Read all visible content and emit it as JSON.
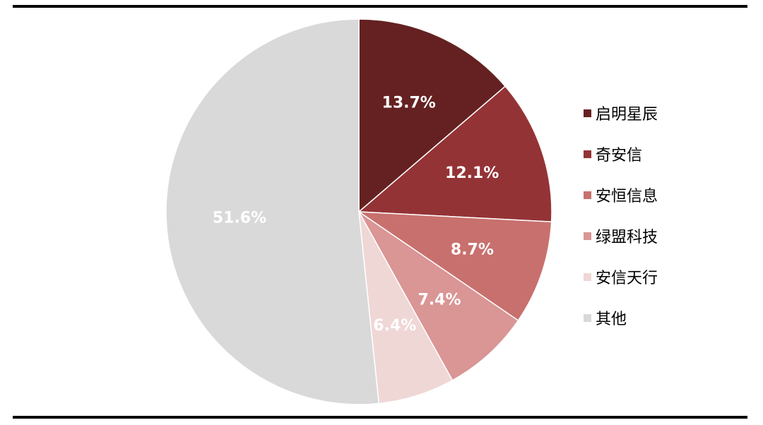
{
  "chart_data": {
    "type": "pie",
    "categories": [
      "启明星辰",
      "奇安信",
      "安恒信息",
      "绿盟科技",
      "安信天行",
      "其他"
    ],
    "values": [
      13.7,
      12.1,
      8.7,
      7.4,
      6.4,
      51.6
    ],
    "labels": [
      "13.7%",
      "12.1%",
      "8.7%",
      "7.4%",
      "6.4%",
      "51.6%"
    ],
    "colors": [
      "#652121",
      "#943336",
      "#C8706D",
      "#DA9595",
      "#EFD7D6",
      "#D9D9D9"
    ],
    "legend_position": "right",
    "start_angle": "top",
    "direction": "clockwise"
  }
}
